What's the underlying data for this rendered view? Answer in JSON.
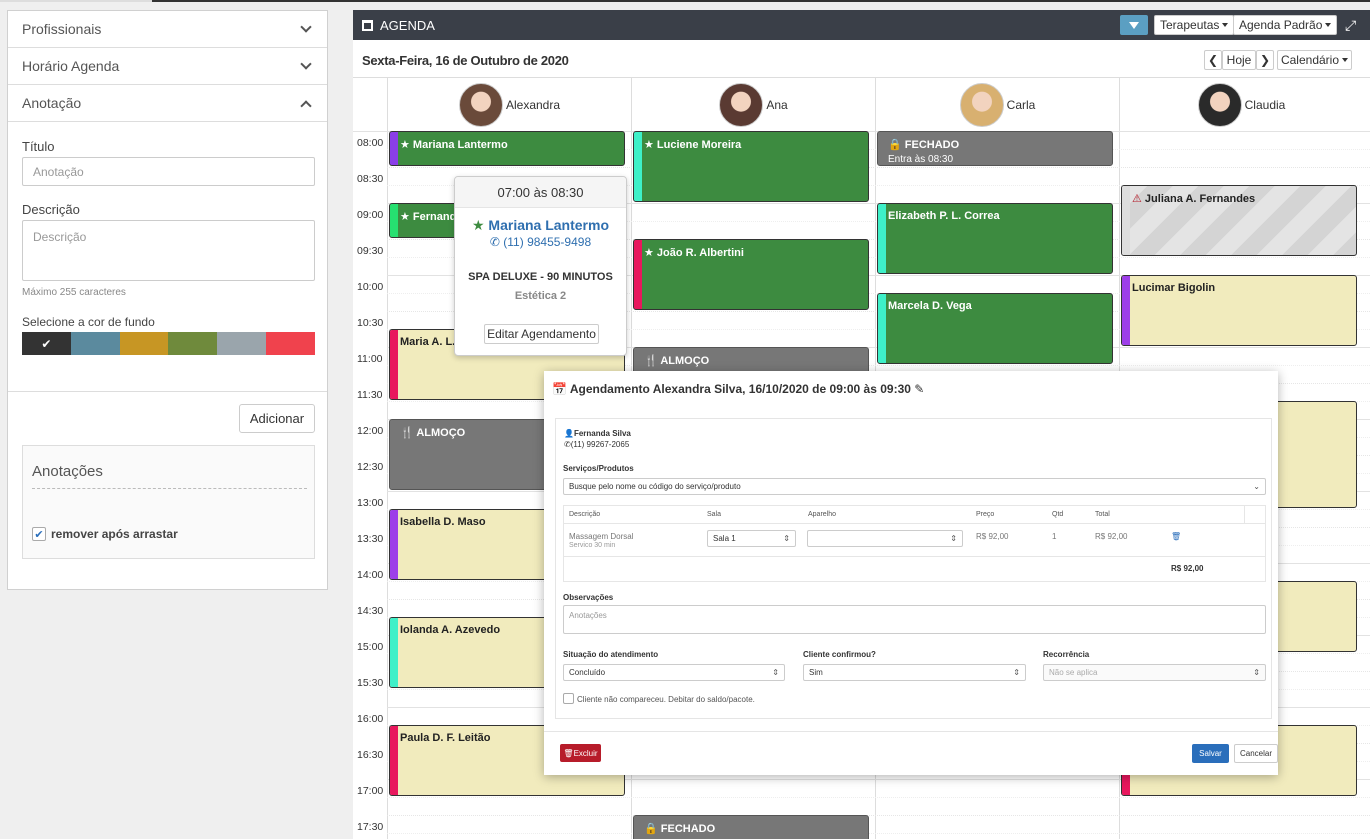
{
  "left_panel": {
    "sections": [
      "Profissionais",
      "Horário Agenda",
      "Anotação"
    ],
    "title_label": "Título",
    "title_placeholder": "Anotação",
    "desc_label": "Descrição",
    "desc_placeholder": "Descrição",
    "max_chars": "Máximo 255 caracteres",
    "color_label": "Selecione a cor de fundo",
    "colors": [
      "#333333",
      "#5b8a9e",
      "#c79624",
      "#6f8a3c",
      "#9aa5ac",
      "#f0424d"
    ],
    "add_button": "Adicionar",
    "annotations_title": "Anotações",
    "remove_after_drag": "remover após arrastar"
  },
  "agenda": {
    "title": "AGENDA",
    "therapists_btn": "Terapeutas",
    "default_btn": "Agenda Padrão",
    "date": "Sexta-Feira, 16 de Outubro de 2020",
    "today_btn": "Hoje",
    "calendar_btn": "Calendário",
    "professionals": [
      "Alexandra",
      "Ana",
      "Carla",
      "Claudia"
    ],
    "times": [
      "08:00",
      "08:30",
      "09:00",
      "09:30",
      "10:00",
      "10:30",
      "11:00",
      "11:30",
      "12:00",
      "12:30",
      "13:00",
      "13:30",
      "14:00",
      "14:30",
      "15:00",
      "15:30",
      "16:00",
      "16:30",
      "17:00",
      "17:30"
    ],
    "events": [
      {
        "col": 0,
        "start": 0,
        "dur": 1,
        "type": "green",
        "bar": "#8a3ee8",
        "text": "Mariana Lantermo",
        "star": true
      },
      {
        "col": 0,
        "start": 2,
        "dur": 1,
        "type": "green",
        "bar": "#26e070",
        "text": "Fernanda Silva",
        "star": true
      },
      {
        "col": 0,
        "start": 5.5,
        "dur": 2,
        "type": "yellow",
        "bar": "#e8175d",
        "text": "Maria A. L. Ferreira",
        "star": false
      },
      {
        "col": 0,
        "start": 8,
        "dur": 2,
        "type": "gray",
        "bar": "#777777",
        "text": "ALMOÇO",
        "icon": "fork"
      },
      {
        "col": 0,
        "start": 10.5,
        "dur": 2,
        "type": "yellow",
        "bar": "#9d3ee8",
        "text": "Isabella D. Maso"
      },
      {
        "col": 0,
        "start": 13.5,
        "dur": 2,
        "type": "yellow",
        "bar": "#3ef0c8",
        "text": "Iolanda A. Azevedo"
      },
      {
        "col": 0,
        "start": 16.5,
        "dur": 2,
        "type": "yellow",
        "bar": "#e8175d",
        "text": "Paula D. F. Leitão"
      },
      {
        "col": 1,
        "start": 0,
        "dur": 2,
        "type": "green",
        "bar": "#3ef0c8",
        "text": "Luciene Moreira",
        "star": true
      },
      {
        "col": 1,
        "start": 3,
        "dur": 2,
        "type": "green",
        "bar": "#e8175d",
        "text": "João R. Albertini",
        "star": true
      },
      {
        "col": 1,
        "start": 6,
        "dur": 1,
        "type": "gray",
        "bar": "#777777",
        "text": "ALMOÇO",
        "icon": "fork"
      },
      {
        "col": 1,
        "start": 17,
        "dur": 0.7,
        "type": "yellow",
        "bar": "#3ef0c8",
        "text": ""
      },
      {
        "col": 1,
        "start": 19,
        "dur": 1,
        "type": "gray",
        "bar": "#777777",
        "text": "FECHADO",
        "icon": "lock"
      },
      {
        "col": 2,
        "start": 0,
        "dur": 1,
        "type": "gray",
        "bar": "#777777",
        "text": "FECHADO",
        "icon": "lock",
        "sub": "Entra às 08:30"
      },
      {
        "col": 2,
        "start": 2,
        "dur": 2,
        "type": "green",
        "bar": "#3ef0c8",
        "text": "Elizabeth P. L. Correa"
      },
      {
        "col": 2,
        "start": 4.5,
        "dur": 2,
        "type": "green",
        "bar": "#3ef0c8",
        "text": "Marcela D. Vega"
      },
      {
        "col": 3,
        "start": 1.5,
        "dur": 2,
        "type": "hatch",
        "bar": "#dddddd",
        "text": "Juliana A. Fernandes",
        "icon": "warn"
      },
      {
        "col": 3,
        "start": 4,
        "dur": 2,
        "type": "yellow",
        "bar": "#9d3ee8",
        "text": "Lucimar Bigolin"
      },
      {
        "col": 3,
        "start": 7.5,
        "dur": 3,
        "type": "yellow",
        "bar": "#f1ebbd",
        "text": ""
      },
      {
        "col": 3,
        "start": 12.5,
        "dur": 2,
        "type": "yellow",
        "bar": "#f1ebbd",
        "text": ""
      },
      {
        "col": 3,
        "start": 16.5,
        "dur": 2,
        "type": "yellow",
        "bar": "#e8175d",
        "text": ""
      }
    ]
  },
  "popover": {
    "time": "07:00 às 08:30",
    "name": "Mariana Lantermo",
    "phone": "(11) 98455-9498",
    "service": "SPA DELUXE - 90 MINUTOS",
    "room": "Estética 2",
    "edit_btn": "Editar Agendamento"
  },
  "modal": {
    "title": "Agendamento Alexandra Silva, 16/10/2020 de 09:00 às 09:30",
    "client_name": "Fernanda Silva",
    "client_phone": "(11) 99267-2065",
    "services_label": "Serviços/Produtos",
    "services_placeholder": "Busque pelo nome ou código do serviço/produto",
    "col_desc": "Descrição",
    "col_room": "Sala",
    "col_device": "Aparelho",
    "col_price": "Preço",
    "col_qty": "Qtd",
    "col_total": "Total",
    "item_name": "Massagem Dorsal",
    "item_sub": "Servico  30 min",
    "item_room": "Sala 1",
    "item_price": "R$ 92,00",
    "item_qty": "1",
    "item_total": "R$ 92,00",
    "grand_total": "R$ 92,00",
    "obs_label": "Observações",
    "obs_placeholder": "Anotações",
    "status_label": "Situação do atendimento",
    "status_value": "Concluído",
    "confirmed_label": "Cliente confirmou?",
    "confirmed_value": "Sim",
    "recurrence_label": "Recorrência",
    "recurrence_value": "Não se aplica",
    "no_show_label": "Cliente não compareceu. Debitar do saldo/pacote.",
    "delete_btn": "Excluir",
    "save_btn": "Salvar",
    "cancel_btn": "Cancelar"
  }
}
